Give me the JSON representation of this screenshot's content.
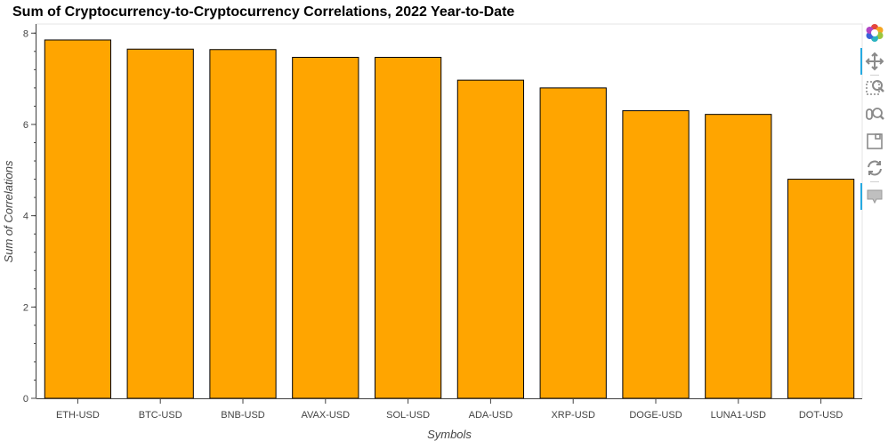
{
  "chart_data": {
    "type": "bar",
    "title": "Sum of Cryptocurrency-to-Cryptocurrency Correlations, 2022 Year-to-Date",
    "xlabel": "Symbols",
    "ylabel": "Sum of Correlations",
    "categories": [
      "ETH-USD",
      "BTC-USD",
      "BNB-USD",
      "AVAX-USD",
      "SOL-USD",
      "ADA-USD",
      "XRP-USD",
      "DOGE-USD",
      "LUNA1-USD",
      "DOT-USD"
    ],
    "values": [
      7.85,
      7.65,
      7.64,
      7.47,
      7.47,
      6.97,
      6.8,
      6.3,
      6.22,
      4.8
    ],
    "ylim": [
      0,
      8.2
    ],
    "yticks": [
      0,
      2,
      4,
      6,
      8
    ],
    "grid": false,
    "legend": "none",
    "colors": {
      "bar_fill": "#FFA500",
      "bar_stroke": "#000000",
      "axis": "#444444"
    }
  },
  "toolbar": {
    "tools": [
      {
        "name": "bokeh-logo-icon"
      },
      {
        "name": "pan-icon",
        "active": true
      },
      {
        "name": "box-zoom-icon"
      },
      {
        "name": "wheel-zoom-icon"
      },
      {
        "name": "save-icon"
      },
      {
        "name": "reset-icon"
      },
      {
        "name": "hover-icon",
        "active": true
      }
    ]
  }
}
